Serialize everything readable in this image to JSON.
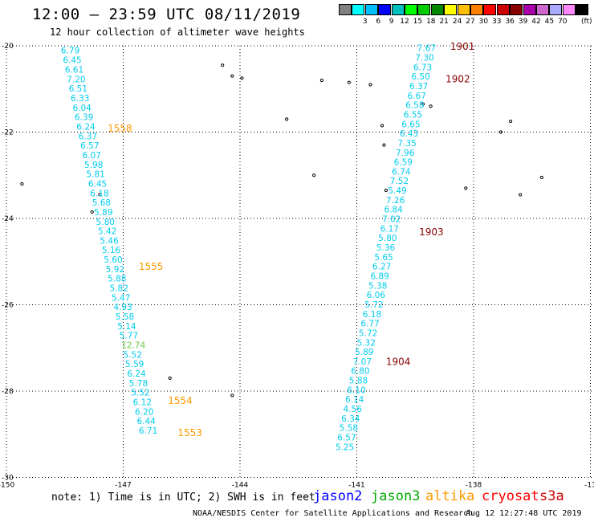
{
  "header": {
    "title": "12:00 — 23:59 UTC 08/11/2019",
    "subtitle": "12 hour collection of altimeter wave heights"
  },
  "legend": {
    "unit": "(ft)",
    "colors": [
      "#808080",
      "#00ffff",
      "#00bfff",
      "#0000ff",
      "#00bfbf",
      "#00ff00",
      "#00cc00",
      "#008800",
      "#ffff00",
      "#ffbf00",
      "#ff8000",
      "#ff0000",
      "#cc0000",
      "#880000",
      "#aa00aa",
      "#cc66cc",
      "#aaaaff",
      "#ff88ff",
      "#000000"
    ],
    "labels": [
      "3",
      "6",
      "9",
      "12",
      "15",
      "18",
      "21",
      "24",
      "27",
      "30",
      "33",
      "36",
      "39",
      "42",
      "45",
      "70"
    ]
  },
  "map_data": {
    "lat_ticks": [
      "-20",
      "-22",
      "-24",
      "-26",
      "-28",
      "-30"
    ],
    "lon_ticks": [
      "-150",
      "-147",
      "-144",
      "-141",
      "-138",
      "-13"
    ],
    "tracks": [
      {
        "satellite": "altika",
        "readings": [
          {
            "lat": -20.1,
            "lon": -148.6,
            "swh": "6.79"
          },
          {
            "lat": -20.33,
            "lon": -148.55,
            "swh": "6.45"
          },
          {
            "lat": -20.55,
            "lon": -148.5,
            "swh": "6.61"
          },
          {
            "lat": -20.77,
            "lon": -148.45,
            "swh": "7.20"
          },
          {
            "lat": -20.99,
            "lon": -148.4,
            "swh": "6.51"
          },
          {
            "lat": -21.21,
            "lon": -148.35,
            "swh": "6.33"
          },
          {
            "lat": -21.43,
            "lon": -148.3,
            "swh": "6.04"
          },
          {
            "lat": -21.65,
            "lon": -148.25,
            "swh": "6.39"
          },
          {
            "lat": -21.87,
            "lon": -148.2,
            "swh": "6.24"
          },
          {
            "lat": -22.09,
            "lon": -148.15,
            "swh": "6.37"
          },
          {
            "lat": -22.31,
            "lon": -148.1,
            "swh": "6.57"
          },
          {
            "lat": -22.53,
            "lon": -148.05,
            "swh": "6.07"
          },
          {
            "lat": -22.75,
            "lon": -148.0,
            "swh": "5.98"
          },
          {
            "lat": -22.97,
            "lon": -147.95,
            "swh": "5.81"
          },
          {
            "lat": -23.19,
            "lon": -147.9,
            "swh": "6.45"
          },
          {
            "lat": -23.41,
            "lon": -147.85,
            "swh": "6.18"
          },
          {
            "lat": -23.63,
            "lon": -147.8,
            "swh": "5.68"
          },
          {
            "lat": -23.85,
            "lon": -147.75,
            "swh": "5.89"
          },
          {
            "lat": -24.07,
            "lon": -147.7,
            "swh": "5.80"
          },
          {
            "lat": -24.29,
            "lon": -147.65,
            "swh": "5.42"
          },
          {
            "lat": -24.51,
            "lon": -147.6,
            "swh": "5.46"
          },
          {
            "lat": -24.73,
            "lon": -147.55,
            "swh": "5.16"
          },
          {
            "lat": -24.95,
            "lon": -147.5,
            "swh": "5.60"
          },
          {
            "lat": -25.17,
            "lon": -147.45,
            "swh": "5.92"
          },
          {
            "lat": -25.39,
            "lon": -147.4,
            "swh": "5.88"
          },
          {
            "lat": -25.61,
            "lon": -147.35,
            "swh": "5.82"
          },
          {
            "lat": -25.83,
            "lon": -147.3,
            "swh": "5.47"
          },
          {
            "lat": -26.05,
            "lon": -147.25,
            "swh": "4.93"
          },
          {
            "lat": -26.27,
            "lon": -147.2,
            "swh": "5.58"
          },
          {
            "lat": -26.49,
            "lon": -147.15,
            "swh": "5.14"
          },
          {
            "lat": -26.71,
            "lon": -147.1,
            "swh": "5.77"
          },
          {
            "lat": -26.93,
            "lon": -147.05,
            "swh": "12.74"
          },
          {
            "lat": -27.15,
            "lon": -147.0,
            "swh": "5.52"
          },
          {
            "lat": -27.37,
            "lon": -146.95,
            "swh": "5.59"
          },
          {
            "lat": -27.59,
            "lon": -146.9,
            "swh": "6.24"
          },
          {
            "lat": -27.81,
            "lon": -146.85,
            "swh": "5.78"
          },
          {
            "lat": -28.03,
            "lon": -146.8,
            "swh": "5.52"
          },
          {
            "lat": -28.25,
            "lon": -146.75,
            "swh": "6.12"
          },
          {
            "lat": -28.47,
            "lon": -146.7,
            "swh": "6.20"
          },
          {
            "lat": -28.69,
            "lon": -146.65,
            "swh": "6.44"
          },
          {
            "lat": -28.91,
            "lon": -146.6,
            "swh": "6.71"
          }
        ],
        "times": [
          {
            "lat": -21.9,
            "lon": -147.4,
            "label": "1558"
          },
          {
            "lat": -25.1,
            "lon": -146.6,
            "label": "1555"
          },
          {
            "lat": -28.2,
            "lon": -145.85,
            "label": "1554"
          },
          {
            "lat": -28.95,
            "lon": -145.6,
            "label": "1553"
          }
        ]
      },
      {
        "satellite": "cryosat",
        "readings": [
          {
            "lat": -20.05,
            "lon": -139.45,
            "swh": "7.67"
          },
          {
            "lat": -20.27,
            "lon": -139.5,
            "swh": "7.30"
          },
          {
            "lat": -20.49,
            "lon": -139.55,
            "swh": "6.73"
          },
          {
            "lat": -20.71,
            "lon": -139.6,
            "swh": "6.50"
          },
          {
            "lat": -20.93,
            "lon": -139.65,
            "swh": "6.37"
          },
          {
            "lat": -21.15,
            "lon": -139.7,
            "swh": "6.67"
          },
          {
            "lat": -21.37,
            "lon": -139.75,
            "swh": "6.58"
          },
          {
            "lat": -21.59,
            "lon": -139.8,
            "swh": "6.55"
          },
          {
            "lat": -21.81,
            "lon": -139.85,
            "swh": "6.65"
          },
          {
            "lat": -22.03,
            "lon": -139.9,
            "swh": "6.43"
          },
          {
            "lat": -22.25,
            "lon": -139.95,
            "swh": "7.35"
          },
          {
            "lat": -22.47,
            "lon": -140.0,
            "swh": "7.96"
          },
          {
            "lat": -22.69,
            "lon": -140.05,
            "swh": "6.59"
          },
          {
            "lat": -22.91,
            "lon": -140.1,
            "swh": "6.74"
          },
          {
            "lat": -23.13,
            "lon": -140.15,
            "swh": "7.52"
          },
          {
            "lat": -23.35,
            "lon": -140.2,
            "swh": "5.49"
          },
          {
            "lat": -23.57,
            "lon": -140.25,
            "swh": "7.26"
          },
          {
            "lat": -23.79,
            "lon": -140.3,
            "swh": "6.84"
          },
          {
            "lat": -24.01,
            "lon": -140.35,
            "swh": "7.02"
          },
          {
            "lat": -24.23,
            "lon": -140.4,
            "swh": "6.17"
          },
          {
            "lat": -24.45,
            "lon": -140.45,
            "swh": "5.80"
          },
          {
            "lat": -24.67,
            "lon": -140.5,
            "swh": "5.36"
          },
          {
            "lat": -24.89,
            "lon": -140.55,
            "swh": "5.65"
          },
          {
            "lat": -25.11,
            "lon": -140.6,
            "swh": "6.27"
          },
          {
            "lat": -25.33,
            "lon": -140.65,
            "swh": "6.89"
          },
          {
            "lat": -25.55,
            "lon": -140.7,
            "swh": "5.38"
          },
          {
            "lat": -25.77,
            "lon": -140.75,
            "swh": "6.06"
          },
          {
            "lat": -25.99,
            "lon": -140.8,
            "swh": "5.72"
          },
          {
            "lat": -26.21,
            "lon": -140.85,
            "swh": "6.18"
          },
          {
            "lat": -26.43,
            "lon": -140.9,
            "swh": "6.77"
          },
          {
            "lat": -26.65,
            "lon": -140.95,
            "swh": "5.72"
          },
          {
            "lat": -26.87,
            "lon": -141.0,
            "swh": "5.32"
          },
          {
            "lat": -27.09,
            "lon": -141.05,
            "swh": "5.89"
          },
          {
            "lat": -27.31,
            "lon": -141.1,
            "swh": "7.07"
          },
          {
            "lat": -27.53,
            "lon": -141.15,
            "swh": "6.80"
          },
          {
            "lat": -27.75,
            "lon": -141.2,
            "swh": "5.88"
          },
          {
            "lat": -27.97,
            "lon": -141.25,
            "swh": "6.10"
          },
          {
            "lat": -28.19,
            "lon": -141.3,
            "swh": "6.14"
          },
          {
            "lat": -28.41,
            "lon": -141.35,
            "swh": "4.56"
          },
          {
            "lat": -28.63,
            "lon": -141.4,
            "swh": "6.34"
          },
          {
            "lat": -28.85,
            "lon": -141.45,
            "swh": "5.58"
          },
          {
            "lat": -29.07,
            "lon": -141.5,
            "swh": "6.57"
          },
          {
            "lat": -29.29,
            "lon": -141.55,
            "swh": "5.25"
          }
        ],
        "times": [
          {
            "lat": -20.0,
            "lon": -138.6,
            "label": "1901"
          },
          {
            "lat": -20.75,
            "lon": -138.72,
            "label": "1902"
          },
          {
            "lat": -24.3,
            "lon": -139.4,
            "label": "1903"
          },
          {
            "lat": -27.3,
            "lon": -140.25,
            "label": "1904"
          }
        ]
      }
    ],
    "islands": [
      {
        "lat": -20.45,
        "lon": -144.45
      },
      {
        "lat": -20.7,
        "lon": -144.2
      },
      {
        "lat": -20.75,
        "lon": -143.95
      },
      {
        "lat": -20.8,
        "lon": -141.9
      },
      {
        "lat": -20.85,
        "lon": -141.2
      },
      {
        "lat": -20.9,
        "lon": -140.65
      },
      {
        "lat": -21.35,
        "lon": -139.3
      },
      {
        "lat": -21.4,
        "lon": -139.1
      },
      {
        "lat": -21.75,
        "lon": -137.05
      },
      {
        "lat": -21.7,
        "lon": -142.8
      },
      {
        "lat": -21.85,
        "lon": -140.35
      },
      {
        "lat": -22.0,
        "lon": -137.3
      },
      {
        "lat": -22.3,
        "lon": -140.3
      },
      {
        "lat": -23.0,
        "lon": -142.1
      },
      {
        "lat": -23.3,
        "lon": -138.2
      },
      {
        "lat": -23.35,
        "lon": -140.25
      },
      {
        "lat": -23.45,
        "lon": -136.8
      },
      {
        "lat": -23.05,
        "lon": -136.25
      },
      {
        "lat": -23.2,
        "lon": -149.6
      },
      {
        "lat": -23.85,
        "lon": -147.8
      },
      {
        "lat": -23.45,
        "lon": -147.6
      },
      {
        "lat": -28.1,
        "lon": -144.2
      },
      {
        "lat": -27.7,
        "lon": -145.8
      }
    ]
  },
  "footer": {
    "note": "note: 1) Time is in UTC; 2) SWH is in feet",
    "satellites": [
      {
        "name": "jason2",
        "color": "#0000ff"
      },
      {
        "name": "jason3",
        "color": "#00aa00"
      },
      {
        "name": "altika",
        "color": "#ff9900"
      },
      {
        "name": "cryosat",
        "color": "#ff0000"
      },
      {
        "name": "s3a",
        "color": "#cc0000"
      }
    ],
    "credit": "NOAA/NESDIS Center for Satellite Applications and Research",
    "generated": "Aug 12 12:27:48 UTC 2019"
  }
}
